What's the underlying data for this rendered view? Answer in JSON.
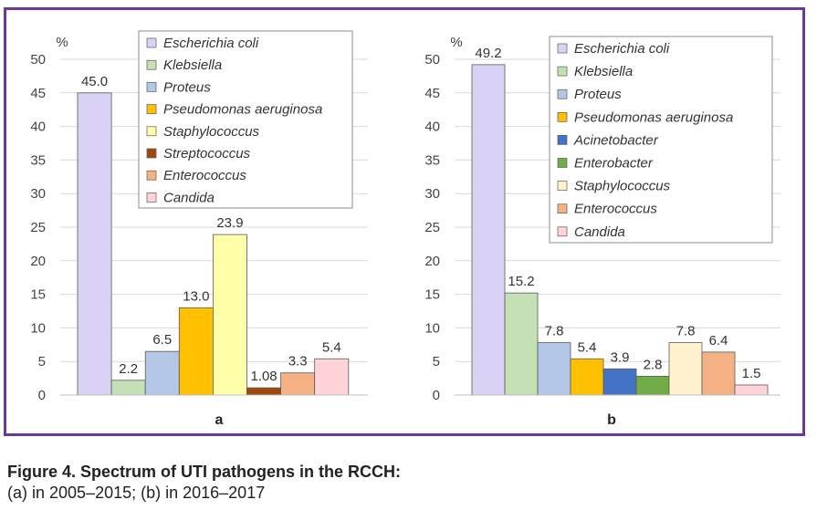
{
  "figure": {
    "caption_title": "Figure 4. Spectrum of UTI pathogens in the RCCH:",
    "caption_subtitle": "(a) in 2005–2015; (b) in 2016–2017"
  },
  "chart_data": [
    {
      "type": "bar",
      "panel_label": "a",
      "ylabel": "%",
      "ylim": [
        0,
        50
      ],
      "yticks": [
        0,
        5,
        10,
        15,
        20,
        25,
        30,
        35,
        40,
        45,
        50
      ],
      "grid": true,
      "legend": "top-right",
      "categories": [
        "Escherichia coli",
        "Klebsiella",
        "Proteus",
        "Pseudomonas aeruginosa",
        "Staphylococcus",
        "Streptococcus",
        "Enterococcus",
        "Candida"
      ],
      "values": [
        45.0,
        2.2,
        6.5,
        13.0,
        23.9,
        1.08,
        3.3,
        5.4
      ],
      "labels": [
        "45.0",
        "2.2",
        "6.5",
        "13.0",
        "23.9",
        "1.08",
        "3.3",
        "5.4"
      ],
      "colors": [
        "#d9d2f5",
        "#c5e0b4",
        "#b4c7e7",
        "#ffc000",
        "#ffffaa",
        "#9e480e",
        "#f4b183",
        "#ffd3d8"
      ]
    },
    {
      "type": "bar",
      "panel_label": "b",
      "ylabel": "%",
      "ylim": [
        0,
        50
      ],
      "yticks": [
        0,
        5,
        10,
        15,
        20,
        25,
        30,
        35,
        40,
        45,
        50
      ],
      "grid": true,
      "legend": "top-right",
      "categories": [
        "Escherichia coli",
        "Klebsiella",
        "Proteus",
        "Pseudomonas aeruginosa",
        "Acinetobacter",
        "Enterobacter",
        "Staphylococcus",
        "Enterococcus",
        "Candida"
      ],
      "values": [
        49.2,
        15.2,
        7.8,
        5.4,
        3.9,
        2.8,
        7.8,
        6.4,
        1.5
      ],
      "labels": [
        "49.2",
        "15.2",
        "7.8",
        "5.4",
        "3.9",
        "2.8",
        "7.8",
        "6.4",
        "1.5"
      ],
      "colors": [
        "#d9d2f5",
        "#c5e0b4",
        "#b4c7e7",
        "#ffc000",
        "#4472c4",
        "#70ad47",
        "#fff2cc",
        "#f4b183",
        "#ffd3d8"
      ]
    }
  ]
}
